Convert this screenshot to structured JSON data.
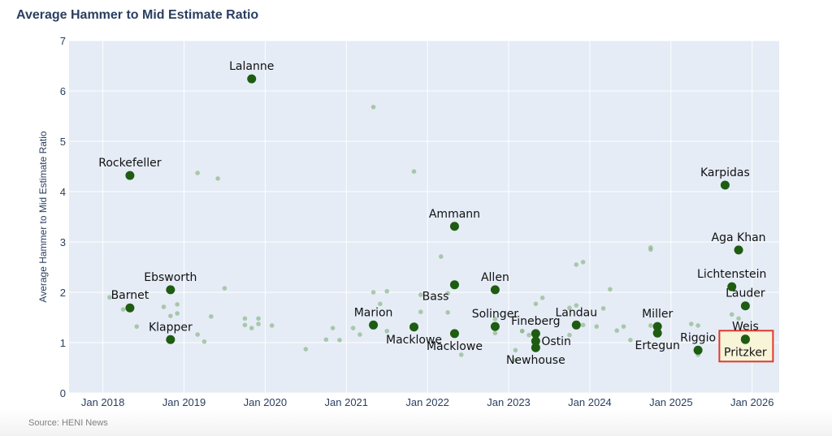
{
  "header": {
    "title": "Average Hammer to Mid Estimate Ratio"
  },
  "footer": {
    "source": "Source: HENI News"
  },
  "chart_data": {
    "type": "scatter",
    "title": "Average Hammer to Mid Estimate Ratio",
    "xlabel": "",
    "ylabel": "Average Hammer to Mid Estimate Ratio",
    "xlim": [
      "2017-08",
      "2026-05"
    ],
    "ylim": [
      0,
      7
    ],
    "x_ticks": [
      {
        "date": "2018-01",
        "label": "Jan 2018"
      },
      {
        "date": "2019-01",
        "label": "Jan 2019"
      },
      {
        "date": "2020-01",
        "label": "Jan 2020"
      },
      {
        "date": "2021-01",
        "label": "Jan 2021"
      },
      {
        "date": "2022-01",
        "label": "Jan 2022"
      },
      {
        "date": "2023-01",
        "label": "Jan 2023"
      },
      {
        "date": "2024-01",
        "label": "Jan 2024"
      },
      {
        "date": "2025-01",
        "label": "Jan 2025"
      },
      {
        "date": "2026-01",
        "label": "Jan 2026"
      }
    ],
    "y_ticks": [
      "0",
      "1",
      "2",
      "3",
      "4",
      "5",
      "6",
      "7"
    ],
    "grid": true,
    "colors": {
      "plot_bg": "#e5ecf6",
      "named": "#1e5c12",
      "other": "#8fb88a",
      "highlight_fill": "#f7f4d8",
      "highlight_border": "#e0392f"
    },
    "named_points": [
      {
        "name": "Barnet",
        "date": "2018-05",
        "value": 1.69,
        "label_pos": "top"
      },
      {
        "name": "Rockefeller",
        "date": "2018-05",
        "value": 4.32,
        "label_pos": "top"
      },
      {
        "name": "Ebsworth",
        "date": "2018-11",
        "value": 2.05,
        "label_pos": "top"
      },
      {
        "name": "Klapper",
        "date": "2018-11",
        "value": 1.06,
        "label_pos": "top"
      },
      {
        "name": "Lalanne",
        "date": "2019-11",
        "value": 6.24,
        "label_pos": "top"
      },
      {
        "name": "Marion",
        "date": "2021-05",
        "value": 1.35,
        "label_pos": "top"
      },
      {
        "name": "Macklowe",
        "date": "2021-11",
        "value": 1.31,
        "label_pos": "bottom"
      },
      {
        "name": "Ammann",
        "date": "2022-05",
        "value": 3.31,
        "label_pos": "top"
      },
      {
        "name": "Bass",
        "date": "2022-05",
        "value": 2.15,
        "label_pos": "bottom-left"
      },
      {
        "name": "Macklowe",
        "date": "2022-05",
        "value": 1.18,
        "label_pos": "bottom"
      },
      {
        "name": "Allen",
        "date": "2022-11",
        "value": 2.05,
        "label_pos": "top"
      },
      {
        "name": "Solinger",
        "date": "2022-11",
        "value": 1.32,
        "label_pos": "top"
      },
      {
        "name": "Fineberg",
        "date": "2023-05",
        "value": 1.18,
        "label_pos": "top"
      },
      {
        "name": "Ostin",
        "date": "2023-05",
        "value": 1.03,
        "label_pos": "right"
      },
      {
        "name": "Newhouse",
        "date": "2023-05",
        "value": 0.9,
        "label_pos": "bottom"
      },
      {
        "name": "Landau",
        "date": "2023-11",
        "value": 1.35,
        "label_pos": "top"
      },
      {
        "name": "Miller",
        "date": "2024-11",
        "value": 1.32,
        "label_pos": "top"
      },
      {
        "name": "Ertegun",
        "date": "2024-11",
        "value": 1.19,
        "label_pos": "bottom"
      },
      {
        "name": "Riggio",
        "date": "2025-05",
        "value": 0.85,
        "label_pos": "top"
      },
      {
        "name": "Karpidas",
        "date": "2025-09",
        "value": 4.13,
        "label_pos": "top"
      },
      {
        "name": "Lichtenstein",
        "date": "2025-10",
        "value": 2.11,
        "label_pos": "top"
      },
      {
        "name": "Aga Khan",
        "date": "2025-11",
        "value": 2.84,
        "label_pos": "top"
      },
      {
        "name": "Lauder",
        "date": "2025-12",
        "value": 1.73,
        "label_pos": "top"
      },
      {
        "name": "Weis",
        "date": "2025-12",
        "value": 1.07,
        "label_pos": "top"
      },
      {
        "name": "Pritzker",
        "date": "2025-12",
        "value": 1.06,
        "label_pos": "bottom",
        "highlighted": true
      }
    ],
    "other_points": [
      [
        "2018-02",
        1.9
      ],
      [
        "2018-04",
        1.66
      ],
      [
        "2018-06",
        1.32
      ],
      [
        "2018-10",
        1.71
      ],
      [
        "2018-11",
        1.53
      ],
      [
        "2018-12",
        1.76
      ],
      [
        "2018-12",
        1.58
      ],
      [
        "2019-03",
        1.16
      ],
      [
        "2019-04",
        1.02
      ],
      [
        "2019-05",
        1.52
      ],
      [
        "2019-07",
        2.08
      ],
      [
        "2019-03",
        4.37
      ],
      [
        "2019-06",
        4.26
      ],
      [
        "2019-10",
        1.48
      ],
      [
        "2019-10",
        1.35
      ],
      [
        "2019-11",
        1.29
      ],
      [
        "2019-12",
        1.48
      ],
      [
        "2019-12",
        1.37
      ],
      [
        "2020-02",
        1.34
      ],
      [
        "2020-07",
        0.87
      ],
      [
        "2020-10",
        1.06
      ],
      [
        "2020-11",
        1.29
      ],
      [
        "2020-12",
        1.05
      ],
      [
        "2021-02",
        1.29
      ],
      [
        "2021-03",
        1.16
      ],
      [
        "2021-05",
        5.68
      ],
      [
        "2021-05",
        2.0
      ],
      [
        "2021-06",
        1.77
      ],
      [
        "2021-07",
        2.02
      ],
      [
        "2021-07",
        1.23
      ],
      [
        "2021-12",
        1.95
      ],
      [
        "2021-11",
        4.4
      ],
      [
        "2021-12",
        1.61
      ],
      [
        "2022-03",
        2.71
      ],
      [
        "2022-04",
        1.98
      ],
      [
        "2022-04",
        1.6
      ],
      [
        "2022-06",
        0.76
      ],
      [
        "2022-11",
        1.47
      ],
      [
        "2022-11",
        1.19
      ],
      [
        "2023-02",
        0.85
      ],
      [
        "2023-02",
        0.65
      ],
      [
        "2023-03",
        1.23
      ],
      [
        "2023-03",
        1.23
      ],
      [
        "2023-04",
        1.15
      ],
      [
        "2023-05",
        1.77
      ],
      [
        "2023-06",
        1.89
      ],
      [
        "2023-10",
        1.15
      ],
      [
        "2023-10",
        1.69
      ],
      [
        "2023-11",
        1.74
      ],
      [
        "2023-11",
        2.55
      ],
      [
        "2023-12",
        1.35
      ],
      [
        "2023-12",
        2.6
      ],
      [
        "2024-02",
        1.32
      ],
      [
        "2024-03",
        1.68
      ],
      [
        "2024-04",
        2.06
      ],
      [
        "2024-05",
        1.24
      ],
      [
        "2024-06",
        1.32
      ],
      [
        "2024-07",
        1.05
      ],
      [
        "2024-10",
        2.85
      ],
      [
        "2024-10",
        2.89
      ],
      [
        "2024-10",
        1.34
      ],
      [
        "2024-11",
        1.29
      ],
      [
        "2025-04",
        1.37
      ],
      [
        "2025-05",
        1.34
      ],
      [
        "2025-05",
        0.76
      ],
      [
        "2025-10",
        1.56
      ],
      [
        "2025-11",
        1.48
      ]
    ]
  }
}
